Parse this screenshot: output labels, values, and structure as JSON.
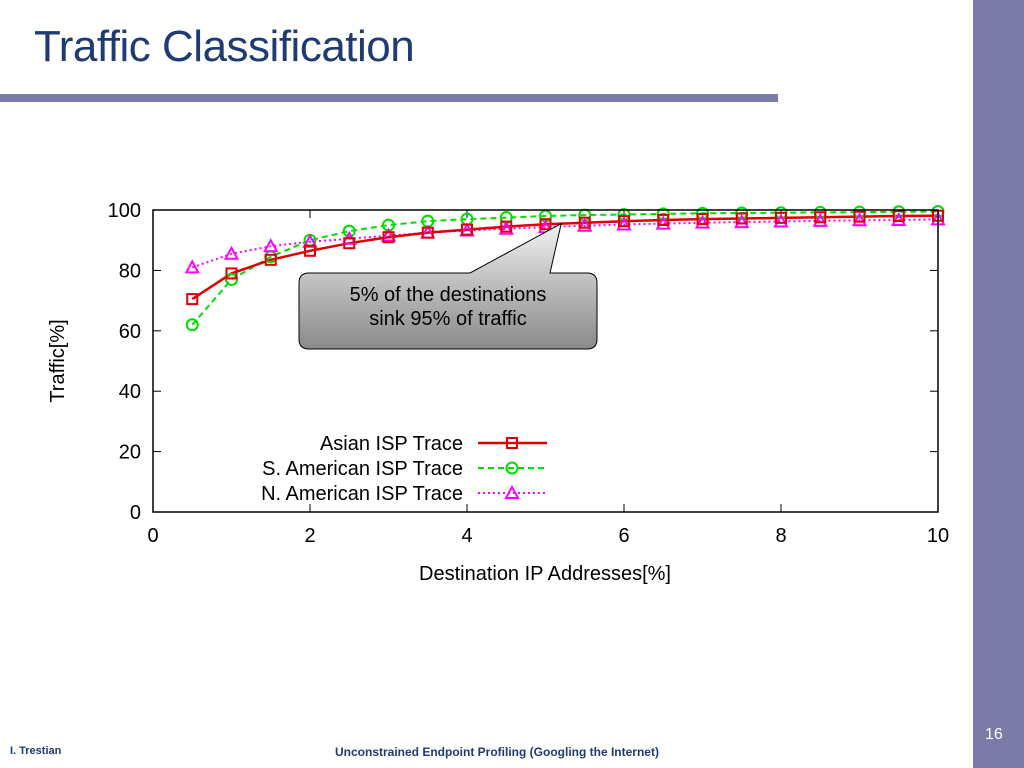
{
  "slide": {
    "title": "Traffic Classification",
    "page_number": "16",
    "author": "I. Trestian",
    "footer_title": "Unconstrained Endpoint Profiling (Googling the Internet)"
  },
  "colors": {
    "title": "#1e3b73",
    "side_bar": "#7b7ba8",
    "asian": "#e00000",
    "s_american": "#00dd00",
    "n_american": "#ff00ff"
  },
  "chart_data": {
    "type": "line",
    "xlabel": "Destination IP Addresses[%]",
    "ylabel": "Traffic[%]",
    "xlim": [
      0,
      10
    ],
    "ylim": [
      0,
      100
    ],
    "xticks": [
      "0",
      "2",
      "4",
      "6",
      "8",
      "10"
    ],
    "yticks": [
      "0",
      "20",
      "40",
      "60",
      "80",
      "100"
    ],
    "grid": false,
    "legend_position": "bottom-center",
    "x": [
      0.5,
      1.0,
      1.5,
      2.0,
      2.5,
      3.0,
      3.5,
      4.0,
      4.5,
      5.0,
      5.5,
      6.0,
      6.5,
      7.0,
      7.5,
      8.0,
      8.5,
      9.0,
      9.5,
      10.0
    ],
    "series": [
      {
        "name": "Asian ISP Trace",
        "color": "#e00000",
        "marker": "square",
        "line_style": "solid",
        "values": [
          70.5,
          79,
          83.5,
          86.5,
          89,
          91,
          92.5,
          93.5,
          94.5,
          95.3,
          95.8,
          96.3,
          96.7,
          97,
          97.2,
          97.4,
          97.6,
          97.8,
          98,
          98.1
        ]
      },
      {
        "name": "S. American ISP Trace",
        "color": "#00dd00",
        "marker": "circle",
        "line_style": "dashed",
        "values": [
          62,
          77,
          84.5,
          90,
          93,
          95,
          96.3,
          97,
          97.5,
          98,
          98.3,
          98.5,
          98.7,
          98.9,
          99,
          99.1,
          99.2,
          99.3,
          99.4,
          99.5
        ]
      },
      {
        "name": "N. American ISP Trace",
        "color": "#ff00ff",
        "marker": "triangle",
        "line_style": "dotted",
        "values": [
          81,
          85.5,
          88,
          89.5,
          90.5,
          91.5,
          92.5,
          93.2,
          93.8,
          94.3,
          94.8,
          95.2,
          95.5,
          95.8,
          96,
          96.2,
          96.4,
          96.6,
          96.7,
          96.9
        ]
      }
    ],
    "annotation": {
      "lines": [
        "5% of the destinations",
        "sink 95% of traffic"
      ],
      "points_to": {
        "x": 5.2,
        "y": 95.5
      }
    }
  }
}
